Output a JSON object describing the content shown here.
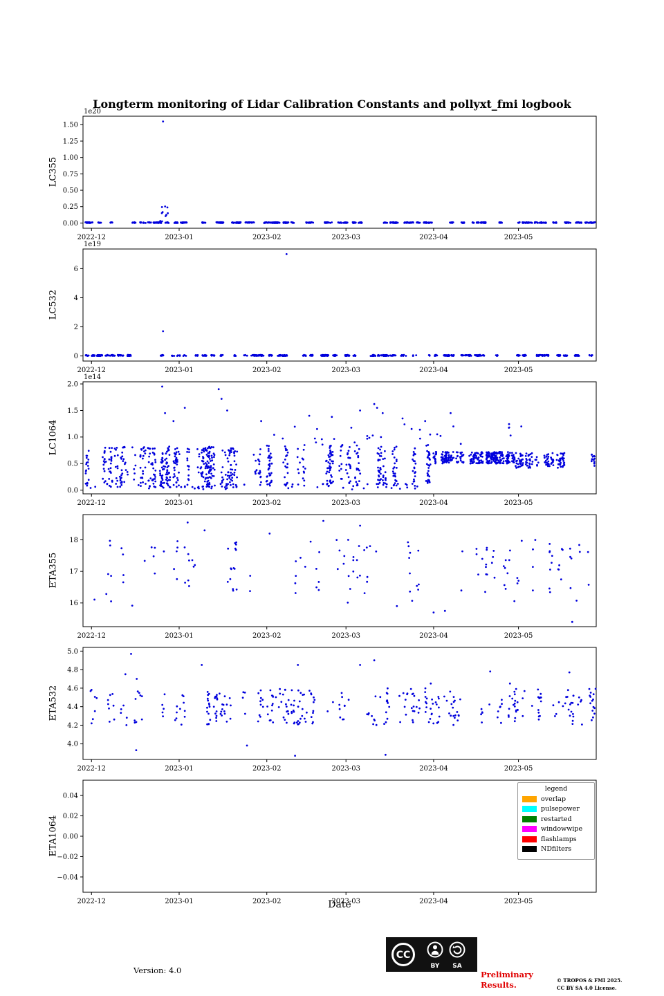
{
  "title": "Longterm monitoring of Lidar Calibration Constants and pollyxt_fmi logbook",
  "xlabel": "Date",
  "legend": {
    "title": "legend",
    "entries": [
      {
        "label": "overlap",
        "color": "#ffa500"
      },
      {
        "label": "pulsepower",
        "color": "#00ffff"
      },
      {
        "label": "restarted",
        "color": "#008000"
      },
      {
        "label": "windowwipe",
        "color": "#ff00ff"
      },
      {
        "label": "flashlamps",
        "color": "#ff0000"
      },
      {
        "label": "NDfilters",
        "color": "#000000"
      }
    ]
  },
  "footer": {
    "version": "Version: 4.0",
    "badge": {
      "cc": "CC",
      "by": "BY",
      "sa": "SA"
    },
    "preliminary_line1": "Preliminary",
    "preliminary_line2": "Results.",
    "copyright_line1": "© TROPOS & FMI 2025.",
    "copyright_line2": "CC BY SA 4.0 License."
  },
  "chart_data": {
    "type": "scatter",
    "point_color": "#0000dd",
    "x_domain_days": [
      -3,
      178.5
    ],
    "x_ticks": [
      {
        "label": "2022-12",
        "day": 0
      },
      {
        "label": "2023-01",
        "day": 31
      },
      {
        "label": "2023-02",
        "day": 62
      },
      {
        "label": "2023-03",
        "day": 90
      },
      {
        "label": "2023-04",
        "day": 121
      },
      {
        "label": "2023-05",
        "day": 151
      }
    ],
    "panels": [
      {
        "ylabel": "LC355",
        "offset_text": "1e20",
        "seed": 11,
        "ylim": [
          -0.08,
          1.63
        ],
        "ytick_values": [
          0.0,
          0.25,
          0.5,
          0.75,
          1.0,
          1.25,
          1.5
        ],
        "ytick_labels": [
          "0.00",
          "0.25",
          "0.50",
          "0.75",
          "1.00",
          "1.25",
          "1.50"
        ],
        "clusters": [
          {
            "type": "columns",
            "n_cols": 95,
            "x": [
              -2,
              178
            ],
            "per": [
              3,
              12
            ],
            "y": [
              0.0,
              0.012
            ]
          },
          {
            "type": "random",
            "n": 10,
            "x": [
              24,
              27
            ],
            "y": [
              0.02,
              0.26
            ]
          }
        ],
        "outliers": [
          [
            25.3,
            1.55
          ]
        ]
      },
      {
        "ylabel": "LC532",
        "offset_text": "1e19",
        "seed": 22,
        "ylim": [
          -0.35,
          7.35
        ],
        "ytick_values": [
          0,
          2,
          4,
          6
        ],
        "ytick_labels": [
          "0",
          "2",
          "4",
          "6"
        ],
        "clusters": [
          {
            "type": "columns",
            "n_cols": 95,
            "x": [
              -2,
              178
            ],
            "per": [
              3,
              12
            ],
            "y": [
              0.0,
              0.07
            ]
          }
        ],
        "outliers": [
          [
            69,
            7.0
          ],
          [
            25.3,
            1.7
          ]
        ]
      },
      {
        "ylabel": "LC1064",
        "offset_text": "1e14",
        "seed": 33,
        "ylim": [
          -0.07,
          2.04
        ],
        "ytick_values": [
          0.0,
          0.5,
          1.0,
          1.5,
          2.0
        ],
        "ytick_labels": [
          "0.0",
          "0.5",
          "1.0",
          "1.5",
          "2.0"
        ],
        "clusters": [
          {
            "type": "columns",
            "n_cols": 40,
            "x": [
              -2,
              56
            ],
            "per": [
              6,
              16
            ],
            "y": [
              0.05,
              0.82
            ]
          },
          {
            "type": "columns",
            "n_cols": 30,
            "x": [
              56,
              120
            ],
            "per": [
              6,
              14
            ],
            "y": [
              0.08,
              0.85
            ]
          },
          {
            "type": "columns",
            "n_cols": 26,
            "x": [
              120,
              150
            ],
            "per": [
              8,
              18
            ],
            "y": [
              0.5,
              0.72
            ]
          },
          {
            "type": "columns",
            "n_cols": 16,
            "x": [
              150,
              178
            ],
            "per": [
              6,
              13
            ],
            "y": [
              0.42,
              0.7
            ]
          },
          {
            "type": "random",
            "n": 55,
            "x": [
              -2,
              120
            ],
            "y": [
              0.01,
              0.12
            ]
          },
          {
            "type": "random",
            "n": 28,
            "x": [
              56,
              150
            ],
            "y": [
              0.85,
              1.25
            ]
          }
        ],
        "outliers": [
          [
            25,
            1.95
          ],
          [
            26,
            1.45
          ],
          [
            29,
            1.3
          ],
          [
            33,
            1.55
          ],
          [
            45,
            1.9
          ],
          [
            46,
            1.72
          ],
          [
            48,
            1.5
          ],
          [
            60,
            1.3
          ],
          [
            77,
            1.4
          ],
          [
            85,
            1.38
          ],
          [
            95,
            1.5
          ],
          [
            100,
            1.62
          ],
          [
            101,
            1.55
          ],
          [
            103,
            1.45
          ],
          [
            110,
            1.35
          ],
          [
            118,
            1.3
          ],
          [
            127,
            1.45
          ],
          [
            128,
            1.2
          ],
          [
            152,
            1.2
          ]
        ]
      },
      {
        "ylabel": "ETA355",
        "offset_text": "",
        "seed": 44,
        "ylim": [
          15.25,
          18.8
        ],
        "ytick_values": [
          16,
          17,
          18
        ],
        "ytick_labels": [
          "16",
          "17",
          "18"
        ],
        "clusters": [
          {
            "type": "columns",
            "n_cols": 60,
            "x": [
              -2,
              178
            ],
            "per": [
              1,
              4
            ],
            "y": [
              16.3,
              18.0
            ]
          },
          {
            "type": "random",
            "n": 8,
            "x": [
              0,
              178
            ],
            "y": [
              15.9,
              16.3
            ]
          }
        ],
        "outliers": [
          [
            82,
            18.6
          ],
          [
            34,
            18.55
          ],
          [
            95,
            18.45
          ],
          [
            63,
            18.2
          ],
          [
            40,
            18.3
          ],
          [
            108,
            15.9
          ],
          [
            121,
            15.7
          ],
          [
            125,
            15.75
          ],
          [
            170,
            15.4
          ]
        ]
      },
      {
        "ylabel": "ETA532",
        "offset_text": "",
        "seed": 55,
        "ylim": [
          3.83,
          5.04
        ],
        "ytick_values": [
          4.0,
          4.2,
          4.4,
          4.6,
          4.8,
          5.0
        ],
        "ytick_labels": [
          "4.0",
          "4.2",
          "4.4",
          "4.6",
          "4.8",
          "5.0"
        ],
        "clusters": [
          {
            "type": "columns",
            "n_cols": 85,
            "x": [
              -2,
              178
            ],
            "per": [
              2,
              6
            ],
            "y": [
              4.2,
              4.6
            ]
          },
          {
            "type": "random",
            "n": 45,
            "x": [
              60,
              178
            ],
            "y": [
              4.28,
              4.52
            ]
          }
        ],
        "outliers": [
          [
            14,
            4.97
          ],
          [
            12,
            4.75
          ],
          [
            16,
            4.7
          ],
          [
            39,
            4.85
          ],
          [
            73,
            4.85
          ],
          [
            95,
            4.85
          ],
          [
            100,
            4.9
          ],
          [
            141,
            4.78
          ],
          [
            169,
            4.77
          ],
          [
            120,
            4.65
          ],
          [
            148,
            4.65
          ],
          [
            55,
            3.98
          ],
          [
            15.8,
            3.93
          ],
          [
            72,
            3.87
          ],
          [
            104,
            3.88
          ]
        ]
      },
      {
        "ylabel": "ETA1064",
        "offset_text": "",
        "seed": 66,
        "ylim": [
          -0.055,
          0.055
        ],
        "ytick_values": [
          -0.04,
          -0.02,
          0.0,
          0.02,
          0.04
        ],
        "ytick_labels": [
          "−0.04",
          "−0.02",
          "0.00",
          "0.02",
          "0.04"
        ],
        "clusters": [],
        "outliers": []
      }
    ]
  }
}
